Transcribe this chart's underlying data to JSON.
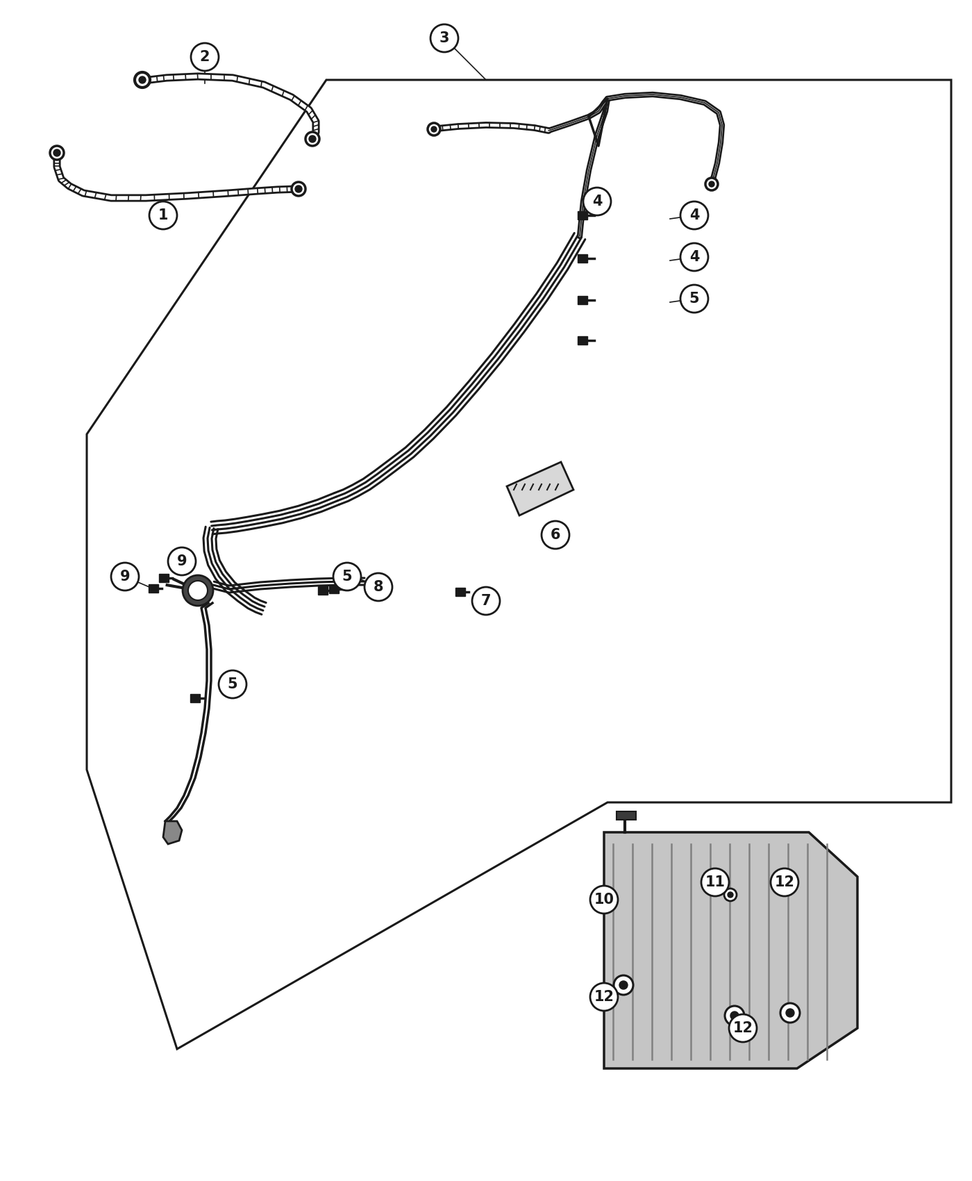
{
  "bg_color": "#ffffff",
  "lc": "#1a1a1a",
  "circle_r": 20,
  "font_size": 15,
  "callouts": [
    [
      1,
      235,
      310,
      248,
      295
    ],
    [
      2,
      295,
      82,
      295,
      120
    ],
    [
      3,
      640,
      55,
      700,
      115
    ],
    [
      4,
      860,
      290,
      855,
      310
    ],
    [
      4,
      1000,
      310,
      965,
      315
    ],
    [
      4,
      1000,
      370,
      965,
      375
    ],
    [
      5,
      1000,
      430,
      965,
      435
    ],
    [
      5,
      500,
      830,
      500,
      815
    ],
    [
      5,
      335,
      985,
      340,
      970
    ],
    [
      6,
      800,
      770,
      800,
      750
    ],
    [
      7,
      700,
      865,
      695,
      852
    ],
    [
      8,
      545,
      845,
      510,
      830
    ],
    [
      9,
      180,
      830,
      215,
      845
    ],
    [
      9,
      262,
      808,
      268,
      825
    ],
    [
      10,
      870,
      1295,
      895,
      1278
    ],
    [
      11,
      1030,
      1270,
      1060,
      1280
    ],
    [
      12,
      1130,
      1270,
      1160,
      1310
    ],
    [
      12,
      870,
      1435,
      895,
      1420
    ],
    [
      12,
      1070,
      1480,
      1080,
      1465
    ]
  ]
}
